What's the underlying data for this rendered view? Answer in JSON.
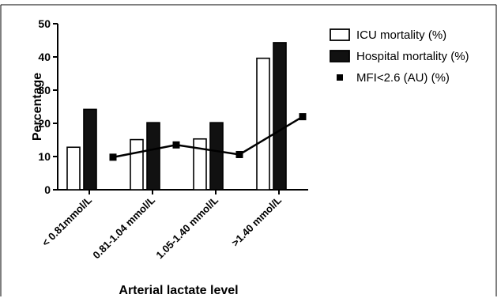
{
  "chart_data": {
    "type": "bar",
    "title": "",
    "xlabel": "Arterial lactate level",
    "ylabel": "Percentage",
    "ylim": [
      0,
      50
    ],
    "yticks": [
      0,
      10,
      20,
      30,
      40,
      50
    ],
    "categories": [
      "< 0.81mmol/L",
      "0.81-1.04 mmol/L",
      "1.05-1.40 mmol/L",
      ">1.40 mmol/L"
    ],
    "series": [
      {
        "name": "ICU mortality (%)",
        "kind": "bar",
        "fill": "#ffffff",
        "values": [
          12.8,
          15.1,
          15.3,
          39.6
        ]
      },
      {
        "name": "Hospital mortality (%)",
        "kind": "bar",
        "fill": "#111111",
        "values": [
          24.2,
          20.2,
          20.2,
          44.3
        ]
      },
      {
        "name": "MFI<2.6 (AU) (%)",
        "kind": "line",
        "marker": "square",
        "values": [
          9.8,
          13.5,
          10.6,
          22.0
        ]
      }
    ],
    "legend_position": "top-right",
    "grid": false
  }
}
